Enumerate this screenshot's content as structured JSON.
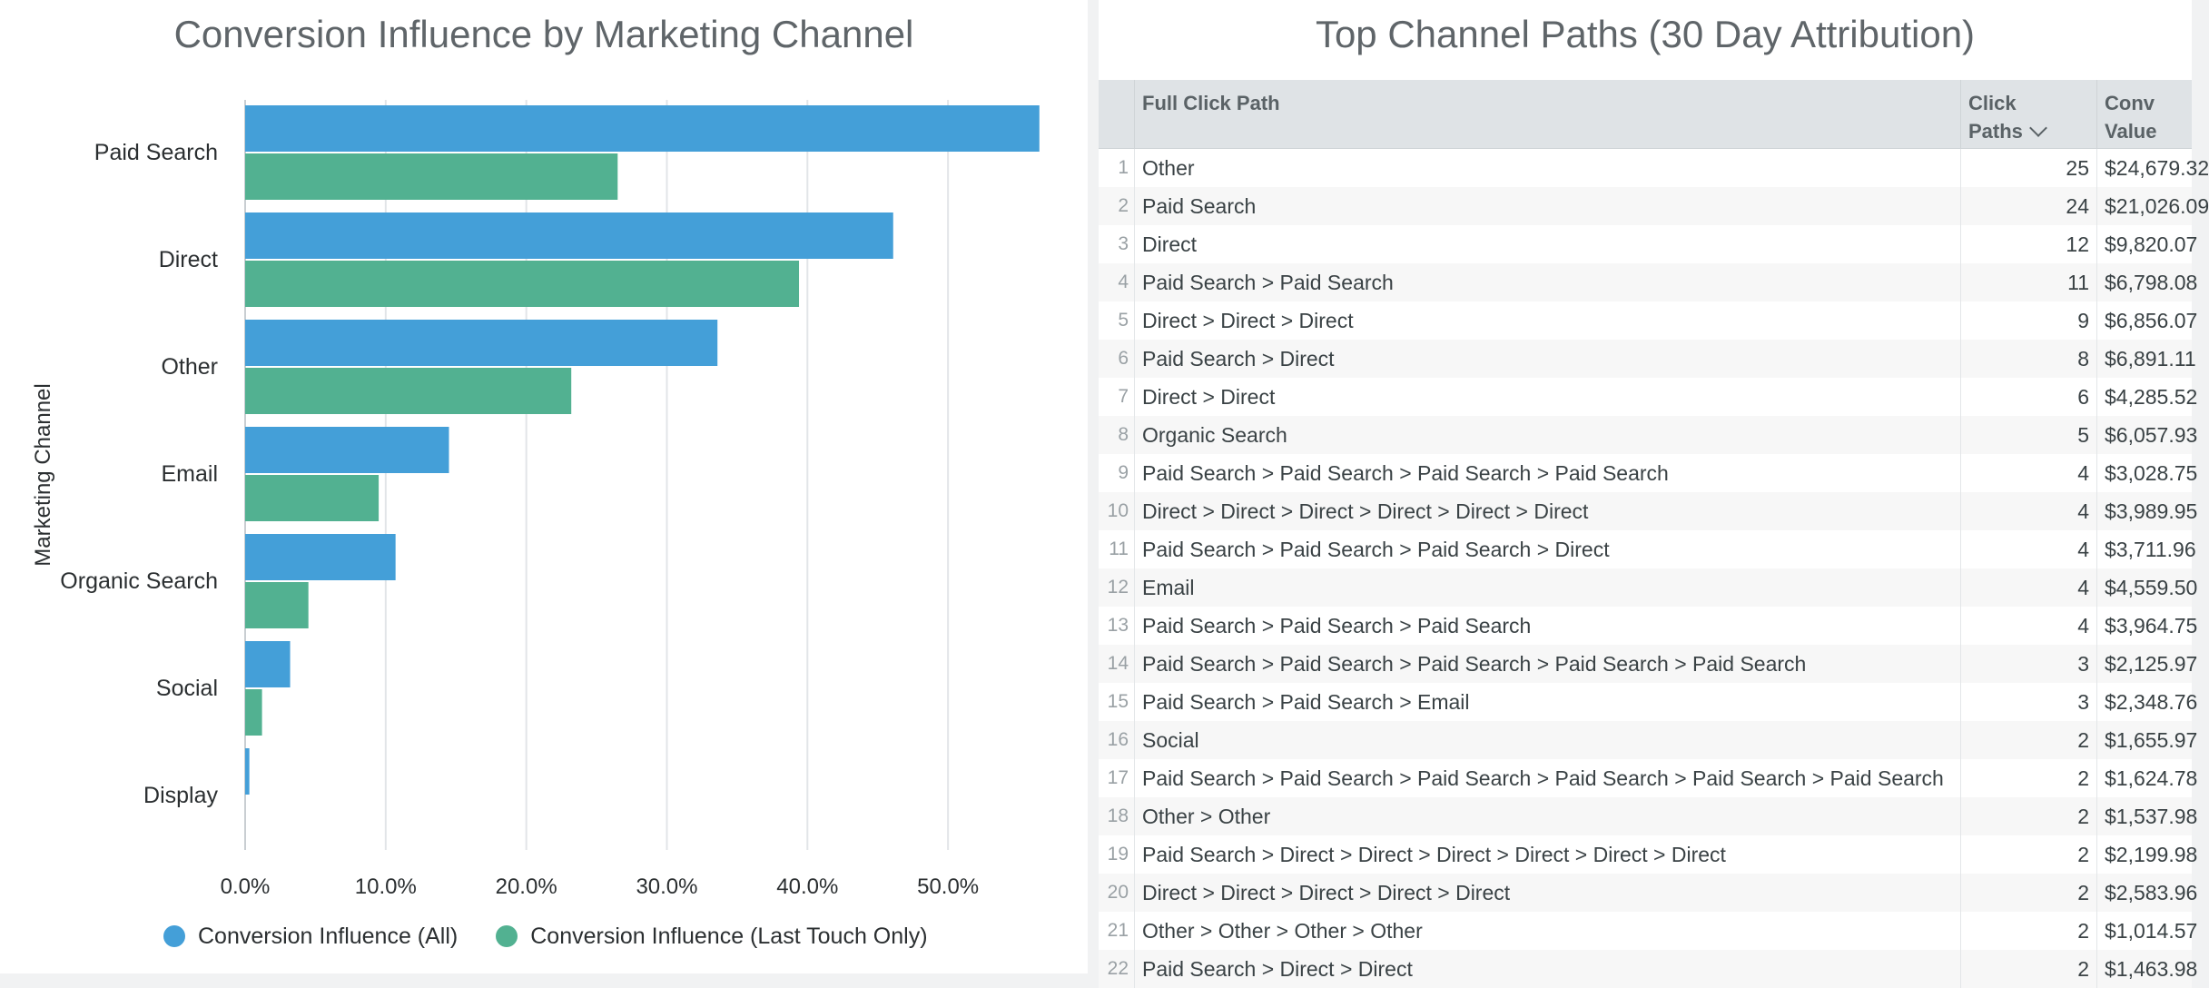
{
  "chart_tile": {
    "title": "Conversion Influence by Marketing Channel",
    "legend": [
      {
        "label": "Conversion Influence (All)",
        "color": "#449fd8"
      },
      {
        "label": "Conversion Influence (Last Touch Only)",
        "color": "#52b191"
      }
    ]
  },
  "chart_data": {
    "type": "bar",
    "orientation": "horizontal",
    "title": "Conversion Influence by Marketing Channel",
    "ylabel": "Marketing Channel",
    "xlabel": "",
    "categories": [
      "Paid Search",
      "Direct",
      "Other",
      "Email",
      "Organic Search",
      "Social",
      "Display"
    ],
    "series": [
      {
        "name": "Conversion Influence (All)",
        "color": "#449fd8",
        "values": [
          56.5,
          46.1,
          33.6,
          14.5,
          10.7,
          3.2,
          0.3
        ]
      },
      {
        "name": "Conversion Influence (Last Touch Only)",
        "color": "#52b191",
        "values": [
          26.5,
          39.4,
          23.2,
          9.5,
          4.5,
          1.2,
          0.0
        ]
      }
    ],
    "xlim": [
      0,
      58
    ],
    "xticks": [
      "0.0%",
      "10.0%",
      "20.0%",
      "30.0%",
      "40.0%",
      "50.0%"
    ],
    "grid": true,
    "legend_position": "bottom"
  },
  "table_tile": {
    "title": "Top Channel Paths (30 Day Attribution)",
    "columns": {
      "path": "Full Click Path",
      "click_line1": "Click",
      "click_line2": "Paths",
      "value_line1": "Conv",
      "value_line2": "Value"
    },
    "sort_icon": "chevron-down-icon",
    "rows": [
      {
        "idx": "1",
        "path": "Other",
        "clicks": "25",
        "value": "$24,679.32"
      },
      {
        "idx": "2",
        "path": "Paid Search",
        "clicks": "24",
        "value": "$21,026.09"
      },
      {
        "idx": "3",
        "path": "Direct",
        "clicks": "12",
        "value": "$9,820.07"
      },
      {
        "idx": "4",
        "path": "Paid Search > Paid Search",
        "clicks": "11",
        "value": "$6,798.08"
      },
      {
        "idx": "5",
        "path": "Direct > Direct > Direct",
        "clicks": "9",
        "value": "$6,856.07"
      },
      {
        "idx": "6",
        "path": "Paid Search > Direct",
        "clicks": "8",
        "value": "$6,891.11"
      },
      {
        "idx": "7",
        "path": "Direct > Direct",
        "clicks": "6",
        "value": "$4,285.52"
      },
      {
        "idx": "8",
        "path": "Organic Search",
        "clicks": "5",
        "value": "$6,057.93"
      },
      {
        "idx": "9",
        "path": "Paid Search > Paid Search > Paid Search > Paid Search",
        "clicks": "4",
        "value": "$3,028.75"
      },
      {
        "idx": "10",
        "path": "Direct > Direct > Direct > Direct > Direct > Direct",
        "clicks": "4",
        "value": "$3,989.95"
      },
      {
        "idx": "11",
        "path": "Paid Search > Paid Search > Paid Search > Direct",
        "clicks": "4",
        "value": "$3,711.96"
      },
      {
        "idx": "12",
        "path": "Email",
        "clicks": "4",
        "value": "$4,559.50"
      },
      {
        "idx": "13",
        "path": "Paid Search > Paid Search > Paid Search",
        "clicks": "4",
        "value": "$3,964.75"
      },
      {
        "idx": "14",
        "path": "Paid Search > Paid Search > Paid Search > Paid Search > Paid Search",
        "clicks": "3",
        "value": "$2,125.97"
      },
      {
        "idx": "15",
        "path": "Paid Search > Paid Search > Email",
        "clicks": "3",
        "value": "$2,348.76"
      },
      {
        "idx": "16",
        "path": "Social",
        "clicks": "2",
        "value": "$1,655.97"
      },
      {
        "idx": "17",
        "path": "Paid Search > Paid Search > Paid Search > Paid Search > Paid Search > Paid Search",
        "clicks": "2",
        "value": "$1,624.78"
      },
      {
        "idx": "18",
        "path": "Other > Other",
        "clicks": "2",
        "value": "$1,537.98"
      },
      {
        "idx": "19",
        "path": "Paid Search > Direct > Direct > Direct > Direct > Direct > Direct",
        "clicks": "2",
        "value": "$2,199.98"
      },
      {
        "idx": "20",
        "path": "Direct > Direct > Direct > Direct > Direct",
        "clicks": "2",
        "value": "$2,583.96"
      },
      {
        "idx": "21",
        "path": "Other > Other > Other > Other",
        "clicks": "2",
        "value": "$1,014.57"
      },
      {
        "idx": "22",
        "path": "Paid Search > Direct > Direct",
        "clicks": "2",
        "value": "$1,463.98"
      }
    ]
  }
}
